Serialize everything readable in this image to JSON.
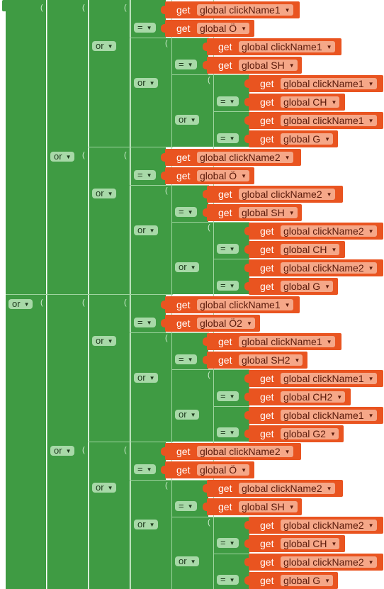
{
  "ops": {
    "or": "or",
    "eq": "=",
    "cap": "("
  },
  "keyword": "get",
  "vars": {
    "click1": "global clickName1",
    "click2": "global clickName2",
    "O": "global Ö",
    "SH": "global SH",
    "CH": "global CH",
    "G": "global G",
    "O2": "global Ö2",
    "SH2": "global SH2",
    "CH2": "global CH2",
    "G2": "global G2"
  }
}
